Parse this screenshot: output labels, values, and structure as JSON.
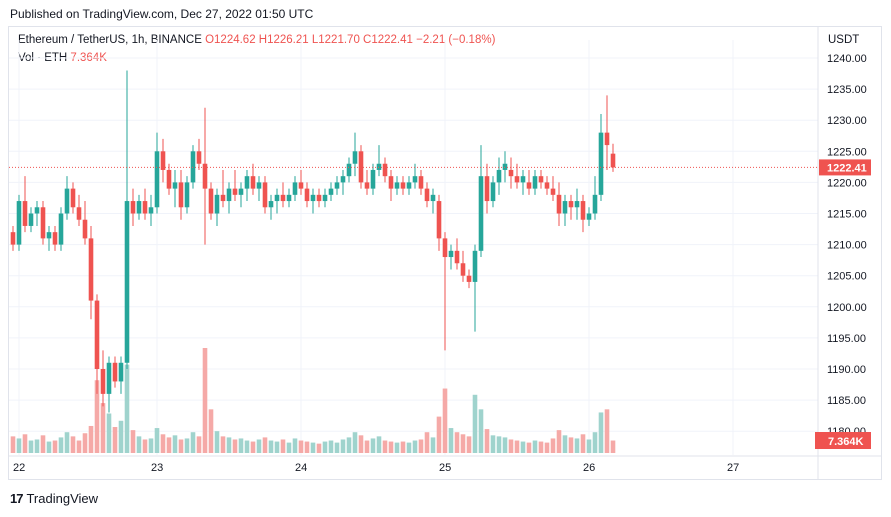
{
  "published": "Published on TradingView.com, Dec 27, 2022 01:50 UTC",
  "legend": {
    "symbol": "Ethereum / TetherUS, 1h, BINANCE",
    "open": "O1224.62",
    "high": "H1226.21",
    "low": "L1221.70",
    "close": "C1222.41",
    "change": "−2.21 (−0.18%)",
    "vol_label": "Vol · ETH",
    "vol_value": "7.364K"
  },
  "unit": "USDT",
  "brand": "TradingView",
  "price_badge": "1222.41",
  "volume_badge": "7.364K",
  "colors": {
    "up": "#26a69a",
    "down": "#ef5350",
    "up_vol": "#9fd3cd",
    "down_vol": "#f5a9a7",
    "grid": "#f0f3fa"
  },
  "chart_data": {
    "type": "candlestick",
    "y_ticks": [
      "1240.00",
      "1235.00",
      "1230.00",
      "1225.00",
      "1220.00",
      "1215.00",
      "1210.00",
      "1205.00",
      "1200.00",
      "1195.00",
      "1190.00",
      "1185.00",
      "1180.00"
    ],
    "x_ticks": [
      {
        "label": "22",
        "i": 1
      },
      {
        "label": "23",
        "i": 24
      },
      {
        "label": "24",
        "i": 48
      },
      {
        "label": "25",
        "i": 72
      },
      {
        "label": "26",
        "i": 96
      },
      {
        "label": "27",
        "i": 120
      }
    ],
    "ylim": [
      1178,
      1241
    ],
    "last_price": 1222.41,
    "candles_ohlcv": [
      [
        1212,
        1213,
        1209,
        1210,
        160
      ],
      [
        1210,
        1218,
        1209,
        1217,
        140
      ],
      [
        1217,
        1221,
        1212,
        1213,
        180
      ],
      [
        1213,
        1216,
        1212,
        1215,
        120
      ],
      [
        1215,
        1217,
        1213,
        1216,
        130
      ],
      [
        1216,
        1217,
        1210,
        1211,
        170
      ],
      [
        1211,
        1213,
        1209,
        1212,
        110
      ],
      [
        1212,
        1213,
        1209,
        1210,
        120
      ],
      [
        1210,
        1216,
        1209,
        1215,
        150
      ],
      [
        1215,
        1221,
        1214,
        1219,
        200
      ],
      [
        1219,
        1220,
        1215,
        1216,
        160
      ],
      [
        1216,
        1218,
        1213,
        1214,
        120
      ],
      [
        1214,
        1217,
        1210,
        1211,
        190
      ],
      [
        1211,
        1213,
        1198,
        1201,
        260
      ],
      [
        1201,
        1202,
        1186,
        1190,
        700
      ],
      [
        1190,
        1193,
        1184,
        1186,
        480
      ],
      [
        1186,
        1192,
        1183,
        1191,
        380
      ],
      [
        1191,
        1192,
        1187,
        1188,
        250
      ],
      [
        1188,
        1192,
        1186,
        1191,
        310
      ],
      [
        1191,
        1238,
        1190,
        1217,
        850
      ],
      [
        1217,
        1219,
        1213,
        1215,
        220
      ],
      [
        1215,
        1218,
        1214,
        1217,
        160
      ],
      [
        1217,
        1219,
        1214,
        1215,
        130
      ],
      [
        1215,
        1218,
        1213,
        1216,
        140
      ],
      [
        1216,
        1228,
        1215,
        1225,
        240
      ],
      [
        1225,
        1227,
        1220,
        1222,
        180
      ],
      [
        1222,
        1223,
        1218,
        1219,
        150
      ],
      [
        1219,
        1222,
        1216,
        1220,
        170
      ],
      [
        1220,
        1222,
        1214,
        1216,
        130
      ],
      [
        1216,
        1221,
        1215,
        1220,
        140
      ],
      [
        1220,
        1226,
        1219,
        1225,
        200
      ],
      [
        1225,
        1227,
        1222,
        1223,
        160
      ],
      [
        1223,
        1232,
        1210,
        1219,
        1010
      ],
      [
        1219,
        1220,
        1214,
        1215,
        420
      ],
      [
        1215,
        1219,
        1213,
        1218,
        210
      ],
      [
        1218,
        1222,
        1216,
        1217,
        160
      ],
      [
        1217,
        1220,
        1215,
        1219,
        150
      ],
      [
        1219,
        1222,
        1217,
        1218,
        130
      ],
      [
        1218,
        1220,
        1216,
        1219,
        140
      ],
      [
        1219,
        1222,
        1217,
        1221,
        120
      ],
      [
        1221,
        1223,
        1218,
        1219,
        110
      ],
      [
        1219,
        1221,
        1217,
        1220,
        130
      ],
      [
        1220,
        1221,
        1215,
        1216,
        150
      ],
      [
        1216,
        1218,
        1214,
        1217,
        120
      ],
      [
        1217,
        1219,
        1215,
        1218,
        110
      ],
      [
        1218,
        1220,
        1216,
        1217,
        130
      ],
      [
        1217,
        1219,
        1216,
        1218,
        100
      ],
      [
        1218,
        1221,
        1217,
        1220,
        140
      ],
      [
        1220,
        1222,
        1218,
        1219,
        120
      ],
      [
        1219,
        1220,
        1216,
        1217,
        110
      ],
      [
        1217,
        1219,
        1215,
        1218,
        100
      ],
      [
        1218,
        1219,
        1216,
        1217,
        90
      ],
      [
        1217,
        1219,
        1216,
        1218,
        110
      ],
      [
        1218,
        1220,
        1217,
        1219,
        120
      ],
      [
        1219,
        1221,
        1218,
        1220,
        100
      ],
      [
        1220,
        1222,
        1218,
        1221,
        130
      ],
      [
        1221,
        1224,
        1220,
        1223,
        150
      ],
      [
        1223,
        1228,
        1221,
        1225,
        200
      ],
      [
        1225,
        1226,
        1219,
        1220,
        170
      ],
      [
        1220,
        1222,
        1218,
        1219,
        120
      ],
      [
        1219,
        1223,
        1218,
        1222,
        140
      ],
      [
        1222,
        1226,
        1221,
        1223,
        160
      ],
      [
        1223,
        1224,
        1220,
        1221,
        120
      ],
      [
        1221,
        1222,
        1217,
        1219,
        110
      ],
      [
        1219,
        1221,
        1218,
        1220,
        100
      ],
      [
        1220,
        1221,
        1218,
        1219,
        110
      ],
      [
        1219,
        1221,
        1218,
        1220,
        100
      ],
      [
        1220,
        1223,
        1219,
        1221,
        120
      ],
      [
        1221,
        1222,
        1218,
        1219,
        130
      ],
      [
        1219,
        1220,
        1216,
        1217,
        200
      ],
      [
        1217,
        1219,
        1215,
        1218,
        150
      ],
      [
        1217,
        1218,
        1209,
        1211,
        350
      ],
      [
        1211,
        1212,
        1193,
        1208,
        620
      ],
      [
        1208,
        1210,
        1206,
        1209,
        240
      ],
      [
        1209,
        1211,
        1206,
        1207,
        200
      ],
      [
        1207,
        1209,
        1204,
        1205,
        180
      ],
      [
        1205,
        1206,
        1203,
        1204,
        160
      ],
      [
        1204,
        1210,
        1196,
        1209,
        560
      ],
      [
        1209,
        1226,
        1208,
        1221,
        420
      ],
      [
        1221,
        1223,
        1215,
        1217,
        230
      ],
      [
        1217,
        1221,
        1216,
        1220,
        170
      ],
      [
        1220,
        1224,
        1218,
        1222,
        160
      ],
      [
        1222,
        1225,
        1220,
        1223,
        150
      ],
      [
        1222,
        1224,
        1219,
        1221,
        130
      ],
      [
        1221,
        1223,
        1219,
        1220,
        120
      ],
      [
        1220,
        1222,
        1218,
        1221,
        110
      ],
      [
        1220,
        1222,
        1218,
        1219,
        100
      ],
      [
        1219,
        1222,
        1218,
        1221,
        120
      ],
      [
        1221,
        1222,
        1219,
        1220,
        110
      ],
      [
        1220,
        1221,
        1218,
        1219,
        100
      ],
      [
        1219,
        1221,
        1217,
        1218,
        140
      ],
      [
        1218,
        1220,
        1213,
        1215,
        220
      ],
      [
        1215,
        1218,
        1213,
        1217,
        170
      ],
      [
        1217,
        1218,
        1214,
        1216,
        150
      ],
      [
        1216,
        1219,
        1214,
        1217,
        140
      ],
      [
        1217,
        1218,
        1212,
        1214,
        180
      ],
      [
        1214,
        1216,
        1213,
        1215,
        130
      ],
      [
        1215,
        1221,
        1214,
        1218,
        200
      ],
      [
        1218,
        1231,
        1217,
        1228,
        390
      ],
      [
        1228,
        1234,
        1222,
        1226,
        420
      ],
      [
        1224.62,
        1226.21,
        1221.7,
        1222.41,
        120
      ]
    ]
  }
}
